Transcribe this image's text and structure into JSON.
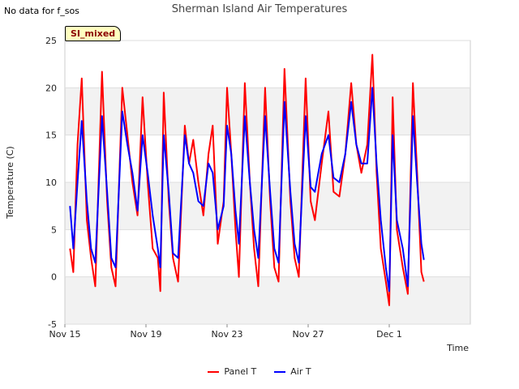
{
  "status_note": "No data for f_sos",
  "badge_label": "SI_mixed",
  "chart_data": {
    "type": "line",
    "title": "Sherman Island Air Temperatures",
    "xlabel": "Time",
    "ylabel": "Temperature (C)",
    "xlim": [
      "2023-11-15",
      "2023-12-05"
    ],
    "ylim": [
      -5,
      25
    ],
    "yticks": [
      -5,
      0,
      5,
      10,
      15,
      20,
      25
    ],
    "xticks": [
      {
        "date": "2023-11-15",
        "label": "Nov 15"
      },
      {
        "date": "2023-11-19",
        "label": "Nov 19"
      },
      {
        "date": "2023-11-23",
        "label": "Nov 23"
      },
      {
        "date": "2023-11-27",
        "label": "Nov 27"
      },
      {
        "date": "2023-12-01",
        "label": "Dec 1"
      }
    ],
    "grid": "horizontal bands",
    "legend_position": "bottom-center",
    "series": [
      {
        "name": "Panel T",
        "color": "#ff0000",
        "points": [
          [
            "2023-11-15 06:00",
            3.0
          ],
          [
            "2023-11-15 10:00",
            0.5
          ],
          [
            "2023-11-15 15:00",
            14.0
          ],
          [
            "2023-11-15 20:00",
            21.0
          ],
          [
            "2023-11-16 02:00",
            6.0
          ],
          [
            "2023-11-16 07:00",
            2.0
          ],
          [
            "2023-11-16 12:00",
            -1.0
          ],
          [
            "2023-11-16 20:00",
            21.7
          ],
          [
            "2023-11-17 02:00",
            8.0
          ],
          [
            "2023-11-17 07:00",
            1.0
          ],
          [
            "2023-11-17 12:00",
            -1.0
          ],
          [
            "2023-11-17 20:00",
            20.0
          ],
          [
            "2023-11-18 02:00",
            15.0
          ],
          [
            "2023-11-18 08:00",
            10.0
          ],
          [
            "2023-11-18 14:00",
            6.5
          ],
          [
            "2023-11-18 20:00",
            19.0
          ],
          [
            "2023-11-19 02:00",
            10.0
          ],
          [
            "2023-11-19 08:00",
            3.0
          ],
          [
            "2023-11-19 14:00",
            2.0
          ],
          [
            "2023-11-19 17:00",
            -1.5
          ],
          [
            "2023-11-19 21:00",
            19.5
          ],
          [
            "2023-11-20 03:00",
            8.0
          ],
          [
            "2023-11-20 08:00",
            2.0
          ],
          [
            "2023-11-20 14:00",
            -0.5
          ],
          [
            "2023-11-20 22:00",
            16.0
          ],
          [
            "2023-11-21 03:00",
            12.0
          ],
          [
            "2023-11-21 08:00",
            14.5
          ],
          [
            "2023-11-21 14:00",
            10.0
          ],
          [
            "2023-11-21 20:00",
            6.5
          ],
          [
            "2023-11-22 02:00",
            13.0
          ],
          [
            "2023-11-22 07:00",
            16.0
          ],
          [
            "2023-11-22 13:00",
            3.5
          ],
          [
            "2023-11-22 20:00",
            8.0
          ],
          [
            "2023-11-23 00:00",
            20.0
          ],
          [
            "2023-11-23 05:00",
            13.0
          ],
          [
            "2023-11-23 10:00",
            5.0
          ],
          [
            "2023-11-23 14:00",
            0.0
          ],
          [
            "2023-11-23 21:00",
            20.5
          ],
          [
            "2023-11-24 03:00",
            10.0
          ],
          [
            "2023-11-24 08:00",
            3.0
          ],
          [
            "2023-11-24 13:00",
            -1.0
          ],
          [
            "2023-11-24 21:00",
            20.0
          ],
          [
            "2023-11-25 03:00",
            8.0
          ],
          [
            "2023-11-25 08:00",
            1.0
          ],
          [
            "2023-11-25 13:00",
            -0.5
          ],
          [
            "2023-11-25 20:00",
            22.0
          ],
          [
            "2023-11-26 03:00",
            8.0
          ],
          [
            "2023-11-26 08:00",
            2.0
          ],
          [
            "2023-11-26 13:00",
            0.0
          ],
          [
            "2023-11-26 21:00",
            21.0
          ],
          [
            "2023-11-27 03:00",
            8.0
          ],
          [
            "2023-11-27 08:00",
            6.0
          ],
          [
            "2023-11-27 16:00",
            12.0
          ],
          [
            "2023-11-28 00:00",
            17.5
          ],
          [
            "2023-11-28 06:00",
            9.0
          ],
          [
            "2023-11-28 13:00",
            8.5
          ],
          [
            "2023-11-28 20:00",
            13.0
          ],
          [
            "2023-11-29 03:00",
            20.5
          ],
          [
            "2023-11-29 09:00",
            14.0
          ],
          [
            "2023-11-29 15:00",
            11.0
          ],
          [
            "2023-11-29 22:00",
            14.0
          ],
          [
            "2023-11-30 04:00",
            23.5
          ],
          [
            "2023-11-30 09:00",
            11.0
          ],
          [
            "2023-11-30 14:00",
            3.0
          ],
          [
            "2023-11-30 20:00",
            -0.5
          ],
          [
            "2023-12-01 00:00",
            -3.0
          ],
          [
            "2023-12-01 04:00",
            19.0
          ],
          [
            "2023-12-01 09:00",
            5.0
          ],
          [
            "2023-12-01 16:00",
            1.0
          ],
          [
            "2023-12-01 22:00",
            -1.8
          ],
          [
            "2023-12-02 04:00",
            20.5
          ],
          [
            "2023-12-02 09:00",
            11.0
          ],
          [
            "2023-12-02 14:00",
            0.5
          ],
          [
            "2023-12-02 17:00",
            -0.5
          ]
        ]
      },
      {
        "name": "Air T",
        "color": "#0000ff",
        "points": [
          [
            "2023-11-15 06:00",
            7.5
          ],
          [
            "2023-11-15 10:00",
            3.0
          ],
          [
            "2023-11-15 15:00",
            10.0
          ],
          [
            "2023-11-15 20:00",
            16.5
          ],
          [
            "2023-11-16 02:00",
            8.0
          ],
          [
            "2023-11-16 07:00",
            3.0
          ],
          [
            "2023-11-16 12:00",
            1.5
          ],
          [
            "2023-11-16 20:00",
            17.0
          ],
          [
            "2023-11-17 02:00",
            9.0
          ],
          [
            "2023-11-17 07:00",
            2.0
          ],
          [
            "2023-11-17 12:00",
            1.0
          ],
          [
            "2023-11-17 20:00",
            17.5
          ],
          [
            "2023-11-18 02:00",
            14.0
          ],
          [
            "2023-11-18 08:00",
            11.0
          ],
          [
            "2023-11-18 14:00",
            7.0
          ],
          [
            "2023-11-18 20:00",
            15.0
          ],
          [
            "2023-11-19 02:00",
            11.0
          ],
          [
            "2023-11-19 08:00",
            6.5
          ],
          [
            "2023-11-19 14:00",
            3.0
          ],
          [
            "2023-11-19 17:00",
            1.0
          ],
          [
            "2023-11-19 21:00",
            15.0
          ],
          [
            "2023-11-20 03:00",
            9.0
          ],
          [
            "2023-11-20 08:00",
            2.5
          ],
          [
            "2023-11-20 14:00",
            2.0
          ],
          [
            "2023-11-20 22:00",
            15.0
          ],
          [
            "2023-11-21 03:00",
            12.0
          ],
          [
            "2023-11-21 08:00",
            11.0
          ],
          [
            "2023-11-21 14:00",
            8.0
          ],
          [
            "2023-11-21 20:00",
            7.5
          ],
          [
            "2023-11-22 02:00",
            12.0
          ],
          [
            "2023-11-22 07:00",
            11.0
          ],
          [
            "2023-11-22 13:00",
            5.0
          ],
          [
            "2023-11-22 20:00",
            7.5
          ],
          [
            "2023-11-23 00:00",
            16.0
          ],
          [
            "2023-11-23 05:00",
            13.0
          ],
          [
            "2023-11-23 10:00",
            7.0
          ],
          [
            "2023-11-23 14:00",
            3.5
          ],
          [
            "2023-11-23 21:00",
            17.0
          ],
          [
            "2023-11-24 03:00",
            10.0
          ],
          [
            "2023-11-24 08:00",
            5.0
          ],
          [
            "2023-11-24 13:00",
            2.0
          ],
          [
            "2023-11-24 21:00",
            17.0
          ],
          [
            "2023-11-25 03:00",
            9.0
          ],
          [
            "2023-11-25 08:00",
            3.0
          ],
          [
            "2023-11-25 13:00",
            1.5
          ],
          [
            "2023-11-25 20:00",
            18.5
          ],
          [
            "2023-11-26 03:00",
            9.0
          ],
          [
            "2023-11-26 08:00",
            3.5
          ],
          [
            "2023-11-26 13:00",
            1.5
          ],
          [
            "2023-11-26 21:00",
            17.0
          ],
          [
            "2023-11-27 03:00",
            9.5
          ],
          [
            "2023-11-27 08:00",
            9.0
          ],
          [
            "2023-11-27 16:00",
            13.0
          ],
          [
            "2023-11-28 00:00",
            15.0
          ],
          [
            "2023-11-28 06:00",
            10.5
          ],
          [
            "2023-11-28 13:00",
            10.0
          ],
          [
            "2023-11-28 20:00",
            13.0
          ],
          [
            "2023-11-29 03:00",
            18.5
          ],
          [
            "2023-11-29 09:00",
            14.0
          ],
          [
            "2023-11-29 15:00",
            12.0
          ],
          [
            "2023-11-29 22:00",
            12.0
          ],
          [
            "2023-11-30 04:00",
            20.0
          ],
          [
            "2023-11-30 09:00",
            12.0
          ],
          [
            "2023-11-30 14:00",
            6.0
          ],
          [
            "2023-11-30 20:00",
            1.0
          ],
          [
            "2023-12-01 00:00",
            -1.5
          ],
          [
            "2023-12-01 04:00",
            15.0
          ],
          [
            "2023-12-01 09:00",
            6.0
          ],
          [
            "2023-12-01 16:00",
            3.0
          ],
          [
            "2023-12-01 22:00",
            -1.0
          ],
          [
            "2023-12-02 04:00",
            17.0
          ],
          [
            "2023-12-02 09:00",
            10.0
          ],
          [
            "2023-12-02 14:00",
            3.5
          ],
          [
            "2023-12-02 17:00",
            1.8
          ]
        ]
      }
    ]
  }
}
